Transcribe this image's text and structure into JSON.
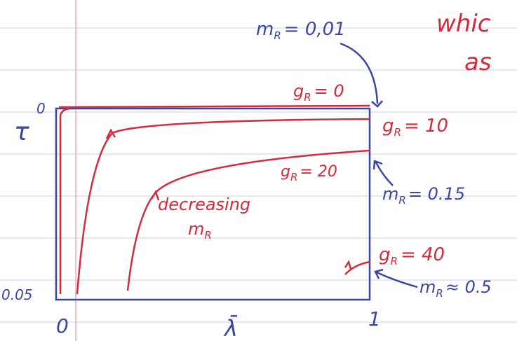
{
  "labels": {
    "mass_top": {
      "symbol": "m",
      "subscript": "R",
      "value": "= 0,01"
    },
    "note_1": "whic",
    "note_2": "as",
    "g0": {
      "symbol": "g",
      "subscript": "R",
      "value": "= 0"
    },
    "g10": {
      "symbol": "g",
      "subscript": "R",
      "value": "= 10"
    },
    "g20": {
      "symbol": "g",
      "subscript": "R",
      "value": "= 20"
    },
    "mass_mid": {
      "symbol": "m",
      "subscript": "R",
      "value": "= 0.15"
    },
    "decreasing": "decreasing",
    "decreasing_mass": {
      "symbol": "m",
      "subscript": "R"
    },
    "g40": {
      "symbol": "g",
      "subscript": "R",
      "value": "= 40"
    },
    "mass_low": {
      "symbol": "m",
      "subscript": "R",
      "value": "≈ 0.5"
    },
    "y_axis": "τ",
    "y_top": "0",
    "y_bottom": "0.05",
    "x_left": "0",
    "x_axis": "λ̄",
    "x_right": "1"
  }
}
